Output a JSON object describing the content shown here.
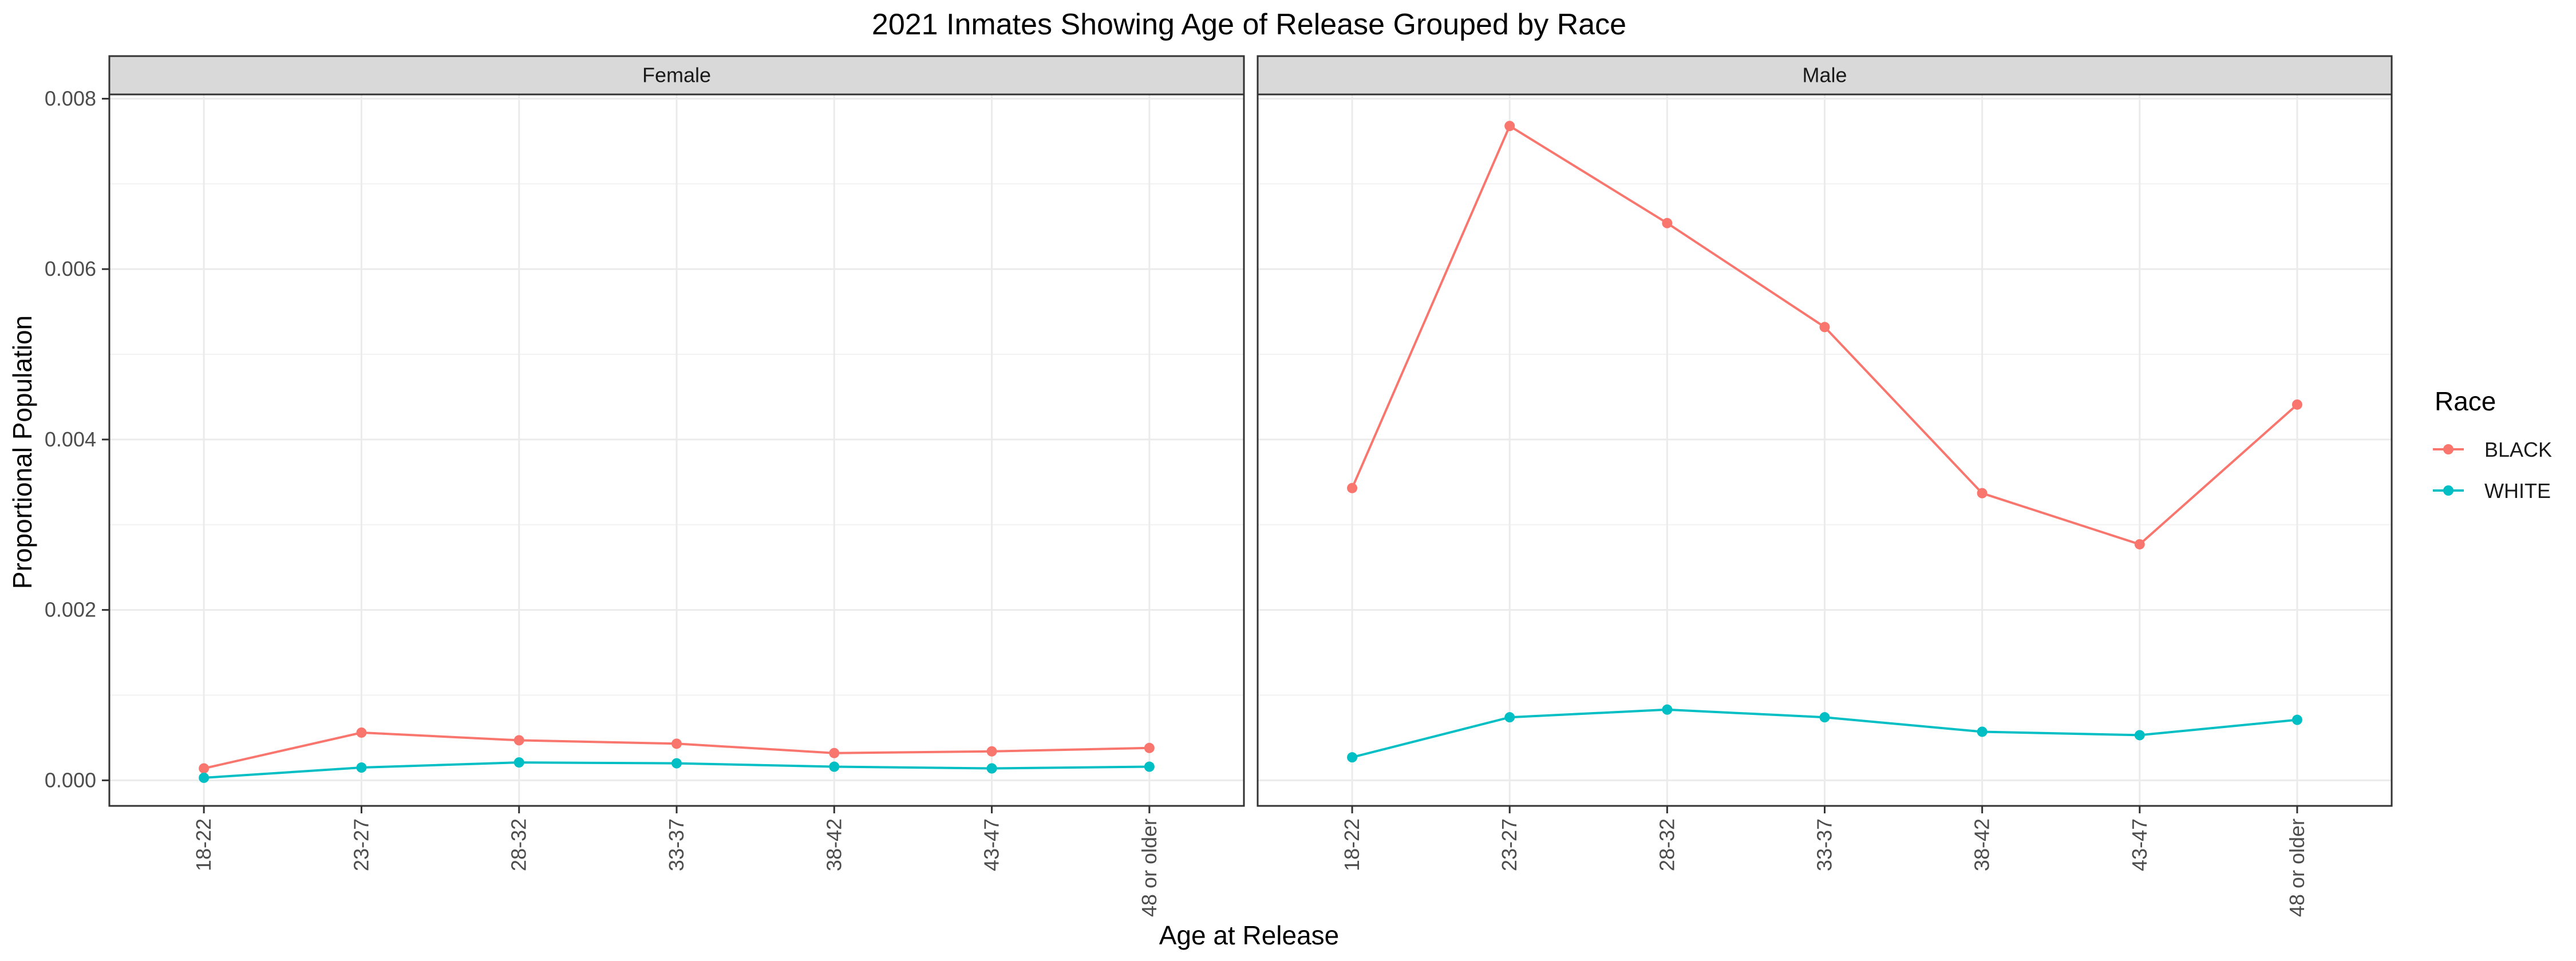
{
  "chart_data": {
    "type": "line",
    "title": "2021 Inmates Showing Age of Release Grouped by Race",
    "xlabel": "Age at Release",
    "ylabel": "Proportional Population",
    "categories": [
      "18-22",
      "23-27",
      "28-32",
      "33-37",
      "38-42",
      "43-47",
      "48 or older"
    ],
    "ylim": [
      -0.0003,
      0.00805
    ],
    "yticks": [
      0.0,
      0.002,
      0.004,
      0.006,
      0.008
    ],
    "ytick_labels": [
      "0.000",
      "0.002",
      "0.004",
      "0.006",
      "0.008"
    ],
    "grid": true,
    "legend": {
      "title": "Race",
      "position": "right"
    },
    "colors": {
      "BLACK": "#F8766D",
      "WHITE": "#00BFC4"
    },
    "panels": [
      {
        "facet": "Female",
        "series": [
          {
            "name": "BLACK",
            "values": [
              0.00014,
              0.00056,
              0.00047,
              0.00043,
              0.00032,
              0.00034,
              0.00038
            ]
          },
          {
            "name": "WHITE",
            "values": [
              3e-05,
              0.00015,
              0.00021,
              0.0002,
              0.00016,
              0.00014,
              0.00016
            ]
          }
        ]
      },
      {
        "facet": "Male",
        "series": [
          {
            "name": "BLACK",
            "values": [
              0.00343,
              0.00768,
              0.00654,
              0.00532,
              0.00337,
              0.00277,
              0.00441
            ]
          },
          {
            "name": "WHITE",
            "values": [
              0.00027,
              0.00074,
              0.00083,
              0.00074,
              0.00057,
              0.00053,
              0.00071
            ]
          }
        ]
      }
    ]
  }
}
